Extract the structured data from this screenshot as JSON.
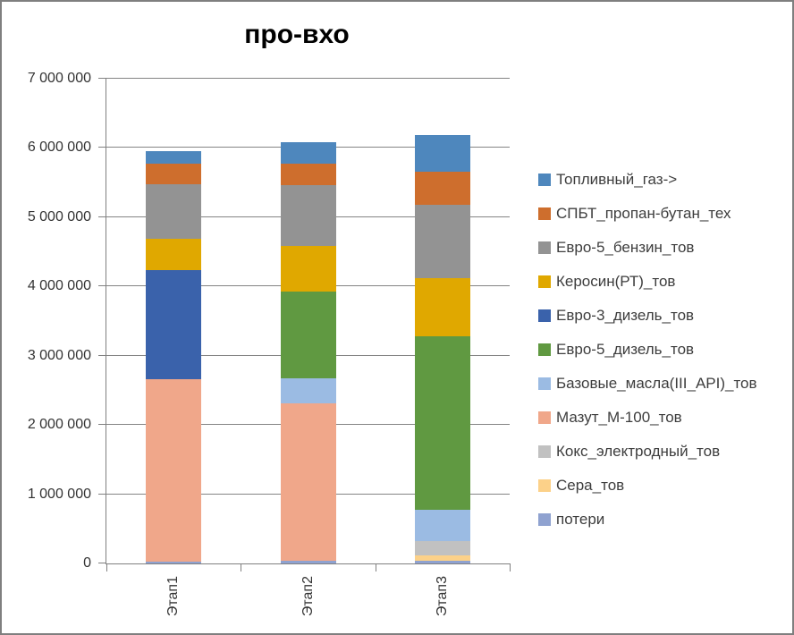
{
  "window": {
    "background": "#ffffff",
    "border_color": "#7f7f7f"
  },
  "chart_data": {
    "type": "bar",
    "stacked": true,
    "title": "про-вхо",
    "categories": [
      "Этап1",
      "Этап2",
      "Этап3"
    ],
    "series": [
      {
        "name": "Топливный_газ->",
        "color": "#4e87bd",
        "values": [
          190000,
          320000,
          530000
        ]
      },
      {
        "name": "СПБТ_пропан-бутан_тех",
        "color": "#ce6e2d",
        "values": [
          300000,
          310000,
          480000
        ]
      },
      {
        "name": "Евро-5_бензин_тов",
        "color": "#939393",
        "values": [
          780000,
          880000,
          1060000
        ]
      },
      {
        "name": "Керосин(РТ)_тов",
        "color": "#e0a800",
        "values": [
          460000,
          650000,
          840000
        ]
      },
      {
        "name": "Евро-3_дизель_тов",
        "color": "#3a62ab",
        "values": [
          1570000,
          0,
          0
        ]
      },
      {
        "name": "Евро-5_дизель_тов",
        "color": "#609941",
        "values": [
          0,
          1250000,
          2500000
        ]
      },
      {
        "name": "Базовые_масла(III_API)_тов",
        "color": "#9bbbe3",
        "values": [
          0,
          370000,
          460000
        ]
      },
      {
        "name": "Мазут_М-100_тов",
        "color": "#f0a78a",
        "values": [
          2640000,
          2270000,
          0
        ]
      },
      {
        "name": "Кокс_электродный_тов",
        "color": "#c1c1c1",
        "values": [
          0,
          0,
          200000
        ]
      },
      {
        "name": "Сера_тов",
        "color": "#fcd189",
        "values": [
          0,
          0,
          80000
        ]
      },
      {
        "name": "потери",
        "color": "#8fa2d0",
        "values": [
          20000,
          40000,
          40000
        ]
      }
    ],
    "stacking_note": "series listed top-to-bottom of stack (legend order); bottom-most segment is last series",
    "ylim": [
      0,
      7000000
    ],
    "ytick_step": 1000000,
    "ytick_labels": [
      "0",
      "1 000 000",
      "2 000 000",
      "3 000 000",
      "4 000 000",
      "5 000 000",
      "6 000 000",
      "7 000 000"
    ],
    "grid": true,
    "legend_position": "right",
    "axis_color": "#808080",
    "gridline_color": "#848484",
    "text_color": "#333333",
    "title_color": "#000000"
  }
}
